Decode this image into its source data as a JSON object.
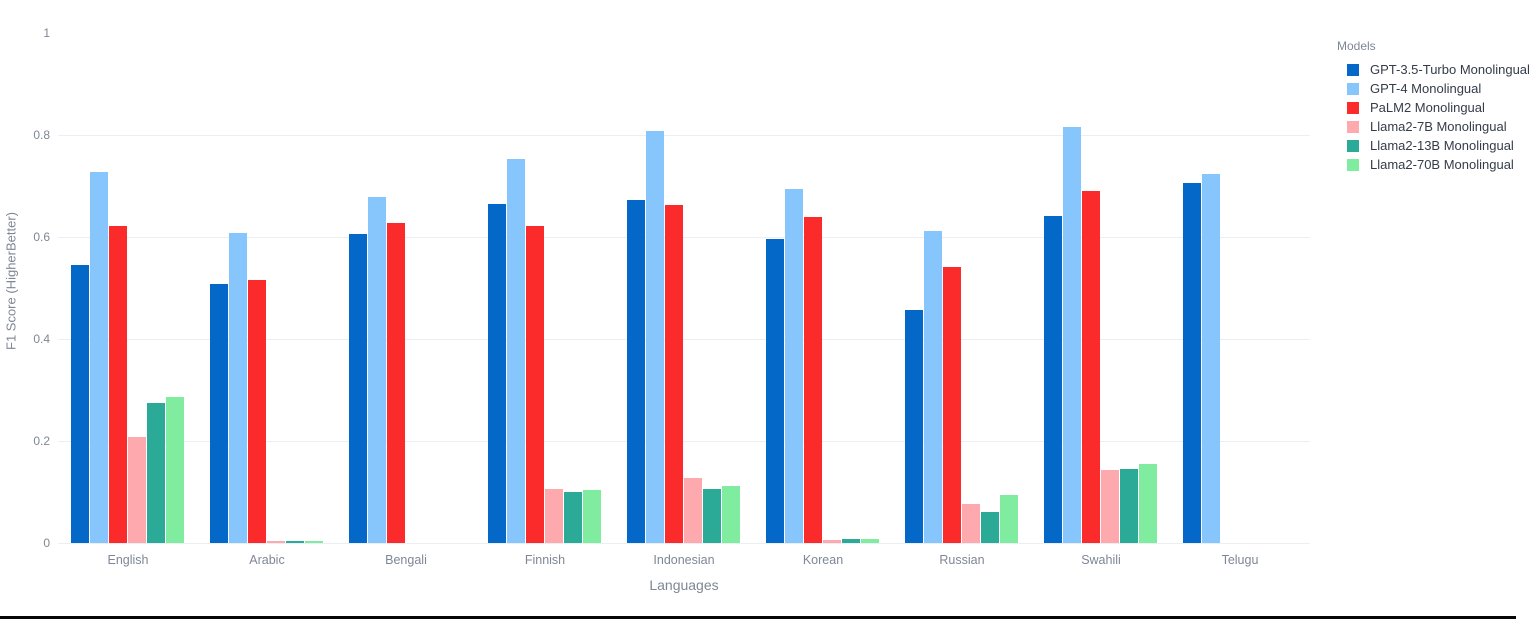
{
  "chart_data": {
    "type": "bar",
    "title": "",
    "xlabel": "Languages",
    "ylabel": "F1 Score (HigherBetter)",
    "ylim": [
      0,
      1
    ],
    "ytick_labels": [
      "0",
      "0.2",
      "0.4",
      "0.6",
      "0.8",
      "1"
    ],
    "ytick_values": [
      0,
      0.2,
      0.4,
      0.6,
      0.8,
      1
    ],
    "gridline_values": [
      0,
      0.2,
      0.4,
      0.6,
      0.8
    ],
    "grid": "on",
    "legend_title": "Models",
    "legend_position": "top-right",
    "categories": [
      "English",
      "Arabic",
      "Bengali",
      "Finnish",
      "Indonesian",
      "Korean",
      "Russian",
      "Swahili",
      "Telugu"
    ],
    "series": [
      {
        "name": "GPT-3.5-Turbo Monolingual",
        "color": "#0468C9",
        "values": [
          0.546,
          0.507,
          0.605,
          0.665,
          0.672,
          0.596,
          0.456,
          0.641,
          0.706
        ]
      },
      {
        "name": "GPT-4 Monolingual",
        "color": "#86C6FC",
        "values": [
          0.727,
          0.607,
          0.678,
          0.752,
          0.807,
          0.695,
          0.612,
          0.815,
          0.723
        ]
      },
      {
        "name": "PaLM2 Monolingual",
        "color": "#FC2B2B",
        "values": [
          0.621,
          0.515,
          0.627,
          0.622,
          0.662,
          0.64,
          0.542,
          0.69,
          0
        ]
      },
      {
        "name": "Llama2-7B Monolingual",
        "color": "#FDA9AD",
        "values": [
          0.208,
          0.003,
          0,
          0.105,
          0.127,
          0.005,
          0.077,
          0.144,
          0
        ]
      },
      {
        "name": "Llama2-13B Monolingual",
        "color": "#2BAA98",
        "values": [
          0.275,
          0.004,
          0,
          0.1,
          0.105,
          0.008,
          0.061,
          0.145,
          0
        ]
      },
      {
        "name": "Llama2-70B Monolingual",
        "color": "#80EC9F",
        "values": [
          0.286,
          0.004,
          0,
          0.104,
          0.112,
          0.007,
          0.095,
          0.155,
          0
        ]
      }
    ]
  }
}
